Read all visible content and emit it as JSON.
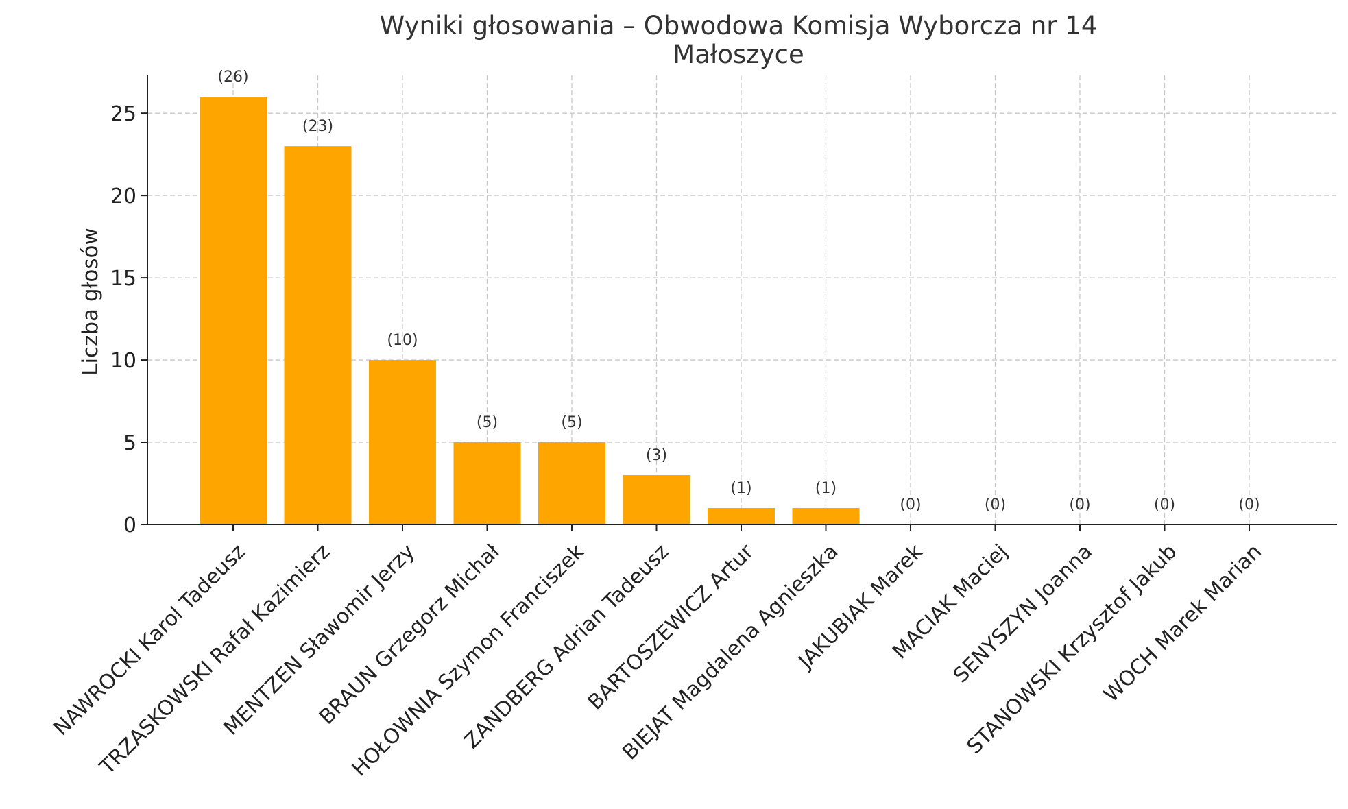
{
  "chart_data": {
    "type": "bar",
    "title_line1": "Wyniki głosowania – Obwodowa Komisja Wyborcza nr 14",
    "title_line2": "Małoszyce",
    "xlabel": "",
    "ylabel": "Liczba głosów",
    "ylim": [
      0,
      27.3
    ],
    "yticks": [
      0,
      5,
      10,
      15,
      20,
      25
    ],
    "grid": true,
    "bar_color": "#FFA500",
    "categories": [
      "NAWROCKI Karol Tadeusz",
      "TRZASKOWSKI Rafał Kazimierz",
      "MENTZEN Sławomir Jerzy",
      "BRAUN Grzegorz Michał",
      "HOŁOWNIA Szymon Franciszek",
      "ZANDBERG Adrian Tadeusz",
      "BARTOSZEWICZ Artur",
      "BIEJAT Magdalena Agnieszka",
      "JAKUBIAK Marek",
      "MACIAK Maciej",
      "SENYSZYN Joanna",
      "STANOWSKI Krzysztof Jakub",
      "WOCH Marek Marian"
    ],
    "values": [
      26,
      23,
      10,
      5,
      5,
      3,
      1,
      1,
      0,
      0,
      0,
      0,
      0
    ],
    "data_labels": [
      "(26)",
      "(23)",
      "(10)",
      "(5)",
      "(5)",
      "(3)",
      "(1)",
      "(1)",
      "(0)",
      "(0)",
      "(0)",
      "(0)",
      "(0)"
    ]
  }
}
